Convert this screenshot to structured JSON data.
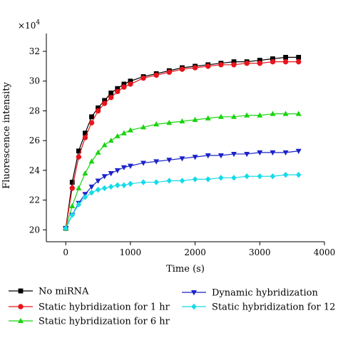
{
  "chart_data": {
    "type": "line",
    "title": "",
    "xlabel": "Time (s)",
    "ylabel": "Fluorescence intensity",
    "y_multiplier": "×10",
    "y_multiplier_exp": "4",
    "xlim": [
      -300,
      4000
    ],
    "ylim": [
      19.2,
      33.2
    ],
    "x_ticks": [
      "0",
      "1000",
      "2000",
      "3000",
      "4000"
    ],
    "y_ticks": [
      "20",
      "22",
      "24",
      "26",
      "28",
      "30",
      "32"
    ],
    "grid": false,
    "legend_position": "bottom",
    "series": [
      {
        "name": "No miRNA",
        "color": "#000000",
        "marker": "square",
        "x": [
          0,
          100,
          200,
          300,
          400,
          500,
          600,
          700,
          800,
          900,
          1000,
          1200,
          1400,
          1600,
          1800,
          2000,
          2200,
          2400,
          2600,
          2800,
          3000,
          3200,
          3400,
          3600
        ],
        "y": [
          20.1,
          23.2,
          25.3,
          26.5,
          27.6,
          28.2,
          28.7,
          29.2,
          29.5,
          29.8,
          30.0,
          30.3,
          30.5,
          30.7,
          30.9,
          31.0,
          31.1,
          31.2,
          31.3,
          31.3,
          31.4,
          31.5,
          31.6,
          31.6
        ]
      },
      {
        "name": "Static hybridization for 1 hr",
        "color": "#e8141b",
        "marker": "circle",
        "x": [
          0,
          100,
          200,
          300,
          400,
          500,
          600,
          700,
          800,
          900,
          1000,
          1200,
          1400,
          1600,
          1800,
          2000,
          2200,
          2400,
          2600,
          2800,
          3000,
          3200,
          3400,
          3600
        ],
        "y": [
          20.1,
          22.8,
          24.9,
          26.2,
          27.2,
          28.0,
          28.5,
          28.9,
          29.3,
          29.6,
          29.8,
          30.2,
          30.4,
          30.6,
          30.8,
          30.9,
          31.0,
          31.1,
          31.1,
          31.2,
          31.2,
          31.3,
          31.3,
          31.3
        ]
      },
      {
        "name": "Static hybridization for 6 hr",
        "color": "#19d40f",
        "marker": "triangle-up",
        "x": [
          0,
          100,
          200,
          300,
          400,
          500,
          600,
          700,
          800,
          900,
          1000,
          1200,
          1400,
          1600,
          1800,
          2000,
          2200,
          2400,
          2600,
          2800,
          3000,
          3200,
          3400,
          3600
        ],
        "y": [
          20.1,
          21.6,
          22.8,
          23.8,
          24.6,
          25.2,
          25.7,
          26.0,
          26.3,
          26.5,
          26.7,
          26.9,
          27.1,
          27.2,
          27.3,
          27.4,
          27.5,
          27.6,
          27.6,
          27.7,
          27.7,
          27.8,
          27.8,
          27.8
        ]
      },
      {
        "name": "Dynamic hybridization",
        "color": "#1b22c8",
        "marker": "triangle-down",
        "x": [
          0,
          100,
          200,
          300,
          400,
          500,
          600,
          700,
          800,
          900,
          1000,
          1200,
          1400,
          1600,
          1800,
          2000,
          2200,
          2400,
          2600,
          2800,
          3000,
          3200,
          3400,
          3600
        ],
        "y": [
          20.1,
          21.0,
          21.8,
          22.4,
          22.9,
          23.3,
          23.6,
          23.8,
          24.0,
          24.2,
          24.3,
          24.5,
          24.6,
          24.7,
          24.8,
          24.9,
          25.0,
          25.0,
          25.1,
          25.1,
          25.2,
          25.2,
          25.2,
          25.3
        ]
      },
      {
        "name": "Static hybridization for 12 hr",
        "color": "#16dbe8",
        "marker": "diamond",
        "x": [
          0,
          100,
          200,
          300,
          400,
          500,
          600,
          700,
          800,
          900,
          1000,
          1200,
          1400,
          1600,
          1800,
          2000,
          2200,
          2400,
          2600,
          2800,
          3000,
          3200,
          3400,
          3600
        ],
        "y": [
          20.1,
          21.0,
          21.7,
          22.2,
          22.5,
          22.7,
          22.8,
          22.9,
          23.0,
          23.0,
          23.1,
          23.2,
          23.2,
          23.3,
          23.3,
          23.4,
          23.4,
          23.5,
          23.5,
          23.6,
          23.6,
          23.6,
          23.7,
          23.7
        ]
      }
    ]
  }
}
